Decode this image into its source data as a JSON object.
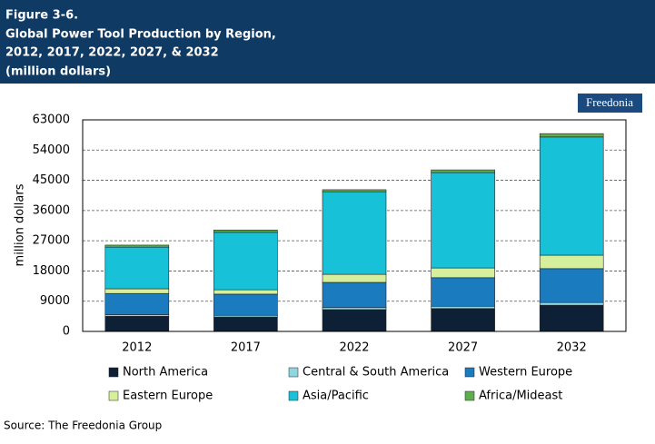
{
  "chart_data": {
    "type": "stacked_bar",
    "figure_label": "Figure 3-6.",
    "title": [
      "Global Power Tool Production by Region,",
      "2012, 2017, 2022, 2027, & 2032"
    ],
    "subtitle": "(million dollars)",
    "logo": "Freedonia",
    "y_label": "million dollars",
    "categories": [
      "2012",
      "2017",
      "2022",
      "2027",
      "2032"
    ],
    "series": [
      {
        "name": "North America",
        "color": "#0e2036",
        "values": [
          4500,
          4300,
          6500,
          6800,
          7800
        ]
      },
      {
        "name": "Central & South America",
        "color": "#8fd6e0",
        "values": [
          500,
          500,
          600,
          700,
          800
        ]
      },
      {
        "name": "Western Europe",
        "color": "#1b7bbf",
        "values": [
          6300,
          6300,
          7500,
          8500,
          10100
        ]
      },
      {
        "name": "Eastern Europe",
        "color": "#d6ef9c",
        "values": [
          1400,
          1300,
          2400,
          2900,
          4000
        ]
      },
      {
        "name": "Asia/Pacific",
        "color": "#17c1d7",
        "values": [
          12400,
          17100,
          24600,
          28400,
          35200
        ]
      },
      {
        "name": "Africa/Mideast",
        "color": "#5fae4e",
        "values": [
          600,
          700,
          600,
          800,
          1000
        ]
      }
    ],
    "ylim": [
      0,
      63000
    ],
    "yticks": [
      0,
      9000,
      18000,
      27000,
      36000,
      45000,
      54000,
      63000
    ],
    "grid": true,
    "source": "Source: The Freedonia Group"
  }
}
